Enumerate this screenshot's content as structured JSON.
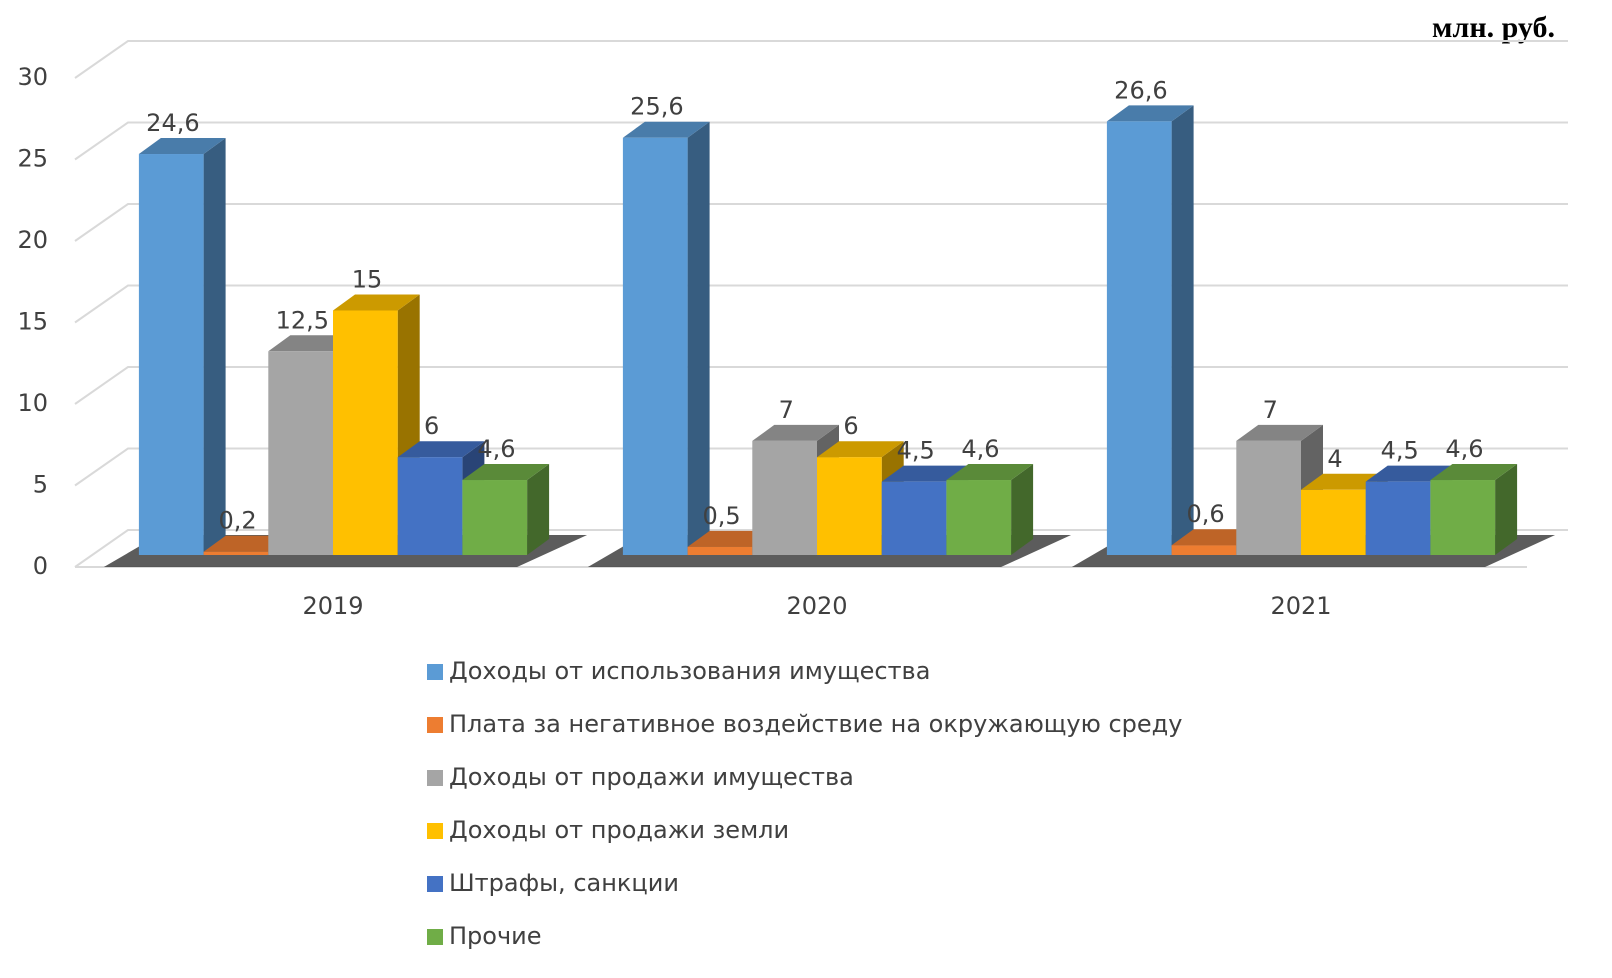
{
  "chart_data": {
    "type": "bar3d",
    "title": "млн. руб.",
    "categories": [
      "2019",
      "2020",
      "2021"
    ],
    "series": [
      {
        "name": "Доходы от использования имущества",
        "color": "#5b9bd5",
        "values": [
          24.6,
          25.6,
          26.6
        ],
        "value_labels": [
          "24,6",
          "25,6",
          "26,6"
        ]
      },
      {
        "name": "Плата за негативное воздействие на окружающую среду",
        "color": "#ed7d31",
        "values": [
          0.2,
          0.5,
          0.6
        ],
        "value_labels": [
          "0,2",
          "0,5",
          "0,6"
        ]
      },
      {
        "name": "Доходы от продажи имущества",
        "color": "#a5a5a5",
        "values": [
          12.5,
          7,
          7
        ],
        "value_labels": [
          "12,5",
          "7",
          "7"
        ]
      },
      {
        "name": "Доходы от продажи земли",
        "color": "#ffc000",
        "values": [
          15,
          6,
          4
        ],
        "value_labels": [
          "15",
          "6",
          "4"
        ]
      },
      {
        "name": "Штрафы, санкции",
        "color": "#4472c4",
        "values": [
          6,
          4.5,
          4.5
        ],
        "value_labels": [
          "6",
          "4,5",
          "4,5"
        ]
      },
      {
        "name": "Прочие",
        "color": "#70ad47",
        "values": [
          4.6,
          4.6,
          4.6
        ],
        "value_labels": [
          "4,6",
          "4,6",
          "4,6"
        ]
      }
    ],
    "ylim": [
      0,
      30
    ],
    "yticks": [
      0,
      5,
      10,
      15,
      20,
      25,
      30
    ],
    "grid": true,
    "legend": "bottom"
  }
}
